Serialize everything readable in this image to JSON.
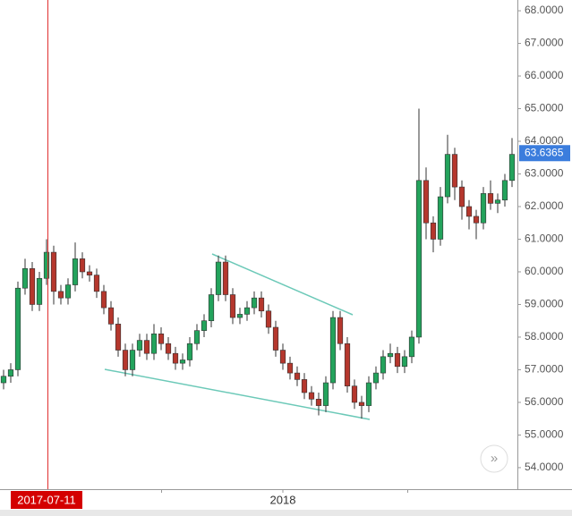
{
  "chart_data": {
    "type": "candlestick",
    "open": [
      56.6,
      56.8,
      57.0,
      59.5,
      60.1,
      59.0,
      59.8,
      60.6,
      59.4,
      59.2,
      59.6,
      60.4,
      60.0,
      59.9,
      59.4,
      58.9,
      58.4,
      57.6,
      57.0,
      57.6,
      57.9,
      57.5,
      58.1,
      57.8,
      57.5,
      57.2,
      57.3,
      57.8,
      58.2,
      58.5,
      59.3,
      60.3,
      59.3,
      58.6,
      58.7,
      58.9,
      59.2,
      58.8,
      58.3,
      57.6,
      57.2,
      56.9,
      56.7,
      56.3,
      56.1,
      55.9,
      56.6,
      58.6,
      57.8,
      56.5,
      56.0,
      55.9,
      56.6,
      56.9,
      57.4,
      57.5,
      57.1,
      57.4,
      58.0,
      62.8,
      61.5,
      61.0,
      62.3,
      63.6,
      62.6,
      62.0,
      61.7,
      61.5,
      62.4,
      62.1,
      62.2,
      62.8
    ],
    "high": [
      57.0,
      57.2,
      59.7,
      60.4,
      60.3,
      60.0,
      61.0,
      60.8,
      59.6,
      59.8,
      60.9,
      60.6,
      60.2,
      60.1,
      59.6,
      59.1,
      58.6,
      57.8,
      57.8,
      58.1,
      58.1,
      58.4,
      58.3,
      58.0,
      57.7,
      57.5,
      58.0,
      58.4,
      58.7,
      59.5,
      60.5,
      60.5,
      59.5,
      58.9,
      59.1,
      59.4,
      59.4,
      59.0,
      58.5,
      57.8,
      57.4,
      57.1,
      56.9,
      56.5,
      56.3,
      56.8,
      58.8,
      58.8,
      58.0,
      56.7,
      56.2,
      56.8,
      57.1,
      57.6,
      57.8,
      57.7,
      57.6,
      58.2,
      65.0,
      63.2,
      61.7,
      62.6,
      64.2,
      63.8,
      62.8,
      62.2,
      61.9,
      62.6,
      62.8,
      62.4,
      63.0,
      64.1
    ],
    "low": [
      56.4,
      56.6,
      56.8,
      59.3,
      58.8,
      58.8,
      59.6,
      59.0,
      59.0,
      59.0,
      59.4,
      59.8,
      59.7,
      59.2,
      58.7,
      58.2,
      57.4,
      56.8,
      56.8,
      57.4,
      57.3,
      57.3,
      57.6,
      57.3,
      57.0,
      57.0,
      57.1,
      57.6,
      58.0,
      58.3,
      59.1,
      59.1,
      58.4,
      58.4,
      58.5,
      58.7,
      58.6,
      58.1,
      57.4,
      57.0,
      56.7,
      56.5,
      56.1,
      55.9,
      55.6,
      55.7,
      56.4,
      57.6,
      56.3,
      55.8,
      55.5,
      55.7,
      56.4,
      56.7,
      57.2,
      56.9,
      56.9,
      57.2,
      57.8,
      61.0,
      60.6,
      60.8,
      62.1,
      62.2,
      61.6,
      61.3,
      61.0,
      61.3,
      61.9,
      61.8,
      62.0,
      62.6
    ],
    "close": [
      56.8,
      57.0,
      59.5,
      60.1,
      59.0,
      59.8,
      60.6,
      59.4,
      59.2,
      59.6,
      60.4,
      60.0,
      59.9,
      59.4,
      58.9,
      58.4,
      57.6,
      57.0,
      57.6,
      57.9,
      57.5,
      58.1,
      57.8,
      57.5,
      57.2,
      57.3,
      57.8,
      58.2,
      58.5,
      59.3,
      60.3,
      59.3,
      58.6,
      58.7,
      58.9,
      59.2,
      58.8,
      58.3,
      57.6,
      57.2,
      56.9,
      56.7,
      56.3,
      56.1,
      55.9,
      56.6,
      58.6,
      57.8,
      56.5,
      56.0,
      55.9,
      56.6,
      56.9,
      57.4,
      57.5,
      57.1,
      57.4,
      58.0,
      62.8,
      61.5,
      61.0,
      62.3,
      63.6,
      62.6,
      62.0,
      61.7,
      61.5,
      62.4,
      62.1,
      62.2,
      62.8,
      63.6
    ],
    "up_color": "#23a35c",
    "down_color": "#b5372d",
    "xlim": [
      -0.5,
      71.75
    ],
    "xticks": [
      {
        "value": 39,
        "label": "2018"
      }
    ],
    "crosshair_label": "2017-07-11",
    "last_price": {
      "value": 63.6365,
      "label": "63.6365"
    },
    "ylim": [
      53.34,
      68.33
    ],
    "yticks": [
      {
        "value": 54,
        "label": "54.0000"
      },
      {
        "value": 55,
        "label": "55.0000"
      },
      {
        "value": 56,
        "label": "56.0000"
      },
      {
        "value": 57,
        "label": "57.0000"
      },
      {
        "value": 58,
        "label": "58.0000"
      },
      {
        "value": 59,
        "label": "59.0000"
      },
      {
        "value": 60,
        "label": "60.0000"
      },
      {
        "value": 61,
        "label": "61.0000"
      },
      {
        "value": 62,
        "label": "62.0000"
      },
      {
        "value": 63,
        "label": "63.0000"
      },
      {
        "value": 64,
        "label": "64.0000"
      },
      {
        "value": 65,
        "label": "65.0000"
      },
      {
        "value": 66,
        "label": "66.0000"
      },
      {
        "value": 67,
        "label": "67.0000"
      },
      {
        "value": 68,
        "label": "68.0000"
      }
    ]
  }
}
